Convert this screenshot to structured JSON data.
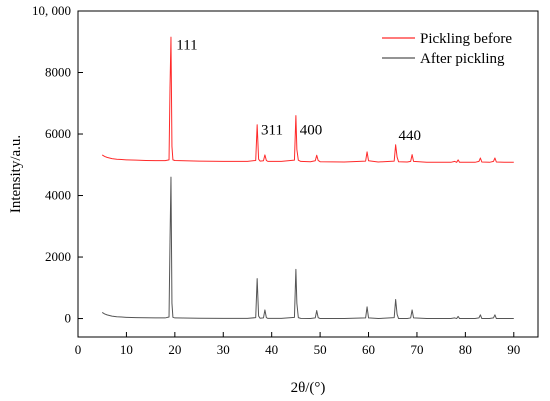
{
  "chart_data": {
    "type": "line",
    "xlabel": "2θ/(°)",
    "ylabel": "Intensity/a.u.",
    "xlim": [
      0,
      95
    ],
    "ylim": [
      -600,
      10000
    ],
    "x_ticks": [
      0,
      10,
      20,
      30,
      40,
      50,
      60,
      70,
      80,
      90
    ],
    "y_ticks": [
      0,
      2000,
      4000,
      6000,
      8000,
      10000
    ],
    "y_tick_labels": [
      "0",
      "2000",
      "4000",
      "6000",
      "8000",
      "10, 000"
    ],
    "legend_position": "top-right",
    "series": [
      {
        "name": "Pickling before",
        "color": "#ff2a2a",
        "baseline": 5100,
        "x": [
          5,
          5.5,
          6,
          6.5,
          7,
          8,
          9,
          10,
          12,
          14,
          16,
          18,
          18.8,
          19.0,
          19.2,
          19.4,
          19.6,
          20,
          25,
          30,
          35,
          36.7,
          37.0,
          37.3,
          37.6,
          38.3,
          38.6,
          38.9,
          39.2,
          42,
          44.7,
          45.0,
          45.2,
          45.5,
          46,
          48,
          49.0,
          49.3,
          49.6,
          50,
          55,
          59.4,
          59.7,
          60.0,
          62,
          65.3,
          65.6,
          65.9,
          66.2,
          68,
          68.7,
          69.0,
          69.3,
          72,
          77,
          77.8,
          78.2,
          78.5,
          78.8,
          79.1,
          82,
          82.8,
          83.1,
          83.4,
          85,
          85.8,
          86.1,
          86.4,
          88,
          90
        ],
        "y": [
          5320,
          5270,
          5240,
          5220,
          5200,
          5180,
          5170,
          5160,
          5150,
          5140,
          5135,
          5135,
          5160,
          7500,
          9150,
          5600,
          5160,
          5140,
          5120,
          5110,
          5110,
          5140,
          6300,
          5180,
          5120,
          5130,
          5320,
          5140,
          5110,
          5110,
          5150,
          6600,
          5500,
          5150,
          5110,
          5100,
          5130,
          5310,
          5140,
          5100,
          5090,
          5120,
          5420,
          5130,
          5090,
          5120,
          5650,
          5250,
          5100,
          5090,
          5110,
          5330,
          5110,
          5080,
          5080,
          5110,
          5080,
          5160,
          5080,
          5080,
          5080,
          5110,
          5220,
          5090,
          5080,
          5110,
          5220,
          5090,
          5080,
          5080
        ]
      },
      {
        "name": "After pickling",
        "color": "#555555",
        "baseline": 0,
        "x": [
          5,
          5.5,
          6,
          6.5,
          7,
          8,
          9,
          10,
          12,
          14,
          16,
          18,
          18.8,
          19.0,
          19.2,
          19.4,
          19.6,
          20,
          25,
          30,
          35,
          36.7,
          37.0,
          37.3,
          37.6,
          38.3,
          38.6,
          38.9,
          39.2,
          42,
          44.7,
          45.0,
          45.2,
          45.5,
          46,
          48,
          49.0,
          49.3,
          49.6,
          50,
          55,
          59.4,
          59.7,
          60.0,
          62,
          65.3,
          65.6,
          65.9,
          66.2,
          68,
          68.7,
          69.0,
          69.3,
          72,
          77,
          77.8,
          78.2,
          78.5,
          78.8,
          79.1,
          82,
          82.8,
          83.1,
          83.4,
          85,
          85.8,
          86.1,
          86.4,
          88,
          90
        ],
        "y": [
          200,
          150,
          120,
          100,
          80,
          60,
          50,
          40,
          30,
          25,
          20,
          20,
          50,
          2500,
          4600,
          500,
          40,
          20,
          10,
          5,
          5,
          30,
          1300,
          80,
          10,
          20,
          280,
          30,
          5,
          5,
          40,
          1600,
          500,
          30,
          5,
          0,
          20,
          260,
          30,
          0,
          0,
          20,
          380,
          20,
          0,
          30,
          620,
          140,
          0,
          0,
          20,
          280,
          20,
          0,
          0,
          20,
          0,
          70,
          0,
          0,
          0,
          20,
          120,
          0,
          0,
          20,
          120,
          0,
          0,
          0
        ]
      }
    ],
    "annotations": [
      {
        "text": "111",
        "x": 20.3,
        "y": 8750
      },
      {
        "text": "311",
        "x": 37.8,
        "y": 5980
      },
      {
        "text": "400",
        "x": 45.8,
        "y": 5980
      },
      {
        "text": "440",
        "x": 66.2,
        "y": 5800
      }
    ]
  }
}
